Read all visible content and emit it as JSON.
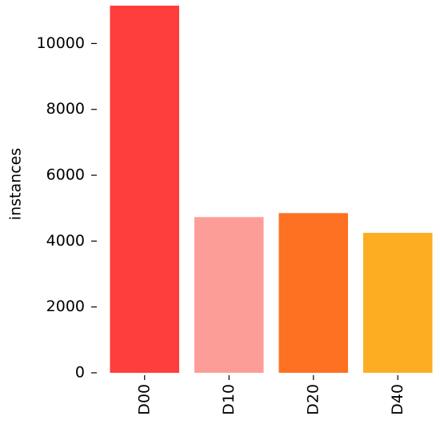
{
  "chart_data": {
    "type": "bar",
    "y_label": "instances",
    "categories": [
      "D00",
      "D10",
      "D20",
      "D40"
    ],
    "values": [
      11150,
      4730,
      4850,
      4250
    ],
    "colors": [
      "#fe3d3d",
      "#fd9d98",
      "#fd7122",
      "#fdad22"
    ],
    "ylim": [
      0,
      11200
    ],
    "yticks": [
      0,
      2000,
      4000,
      6000,
      8000,
      10000
    ]
  }
}
